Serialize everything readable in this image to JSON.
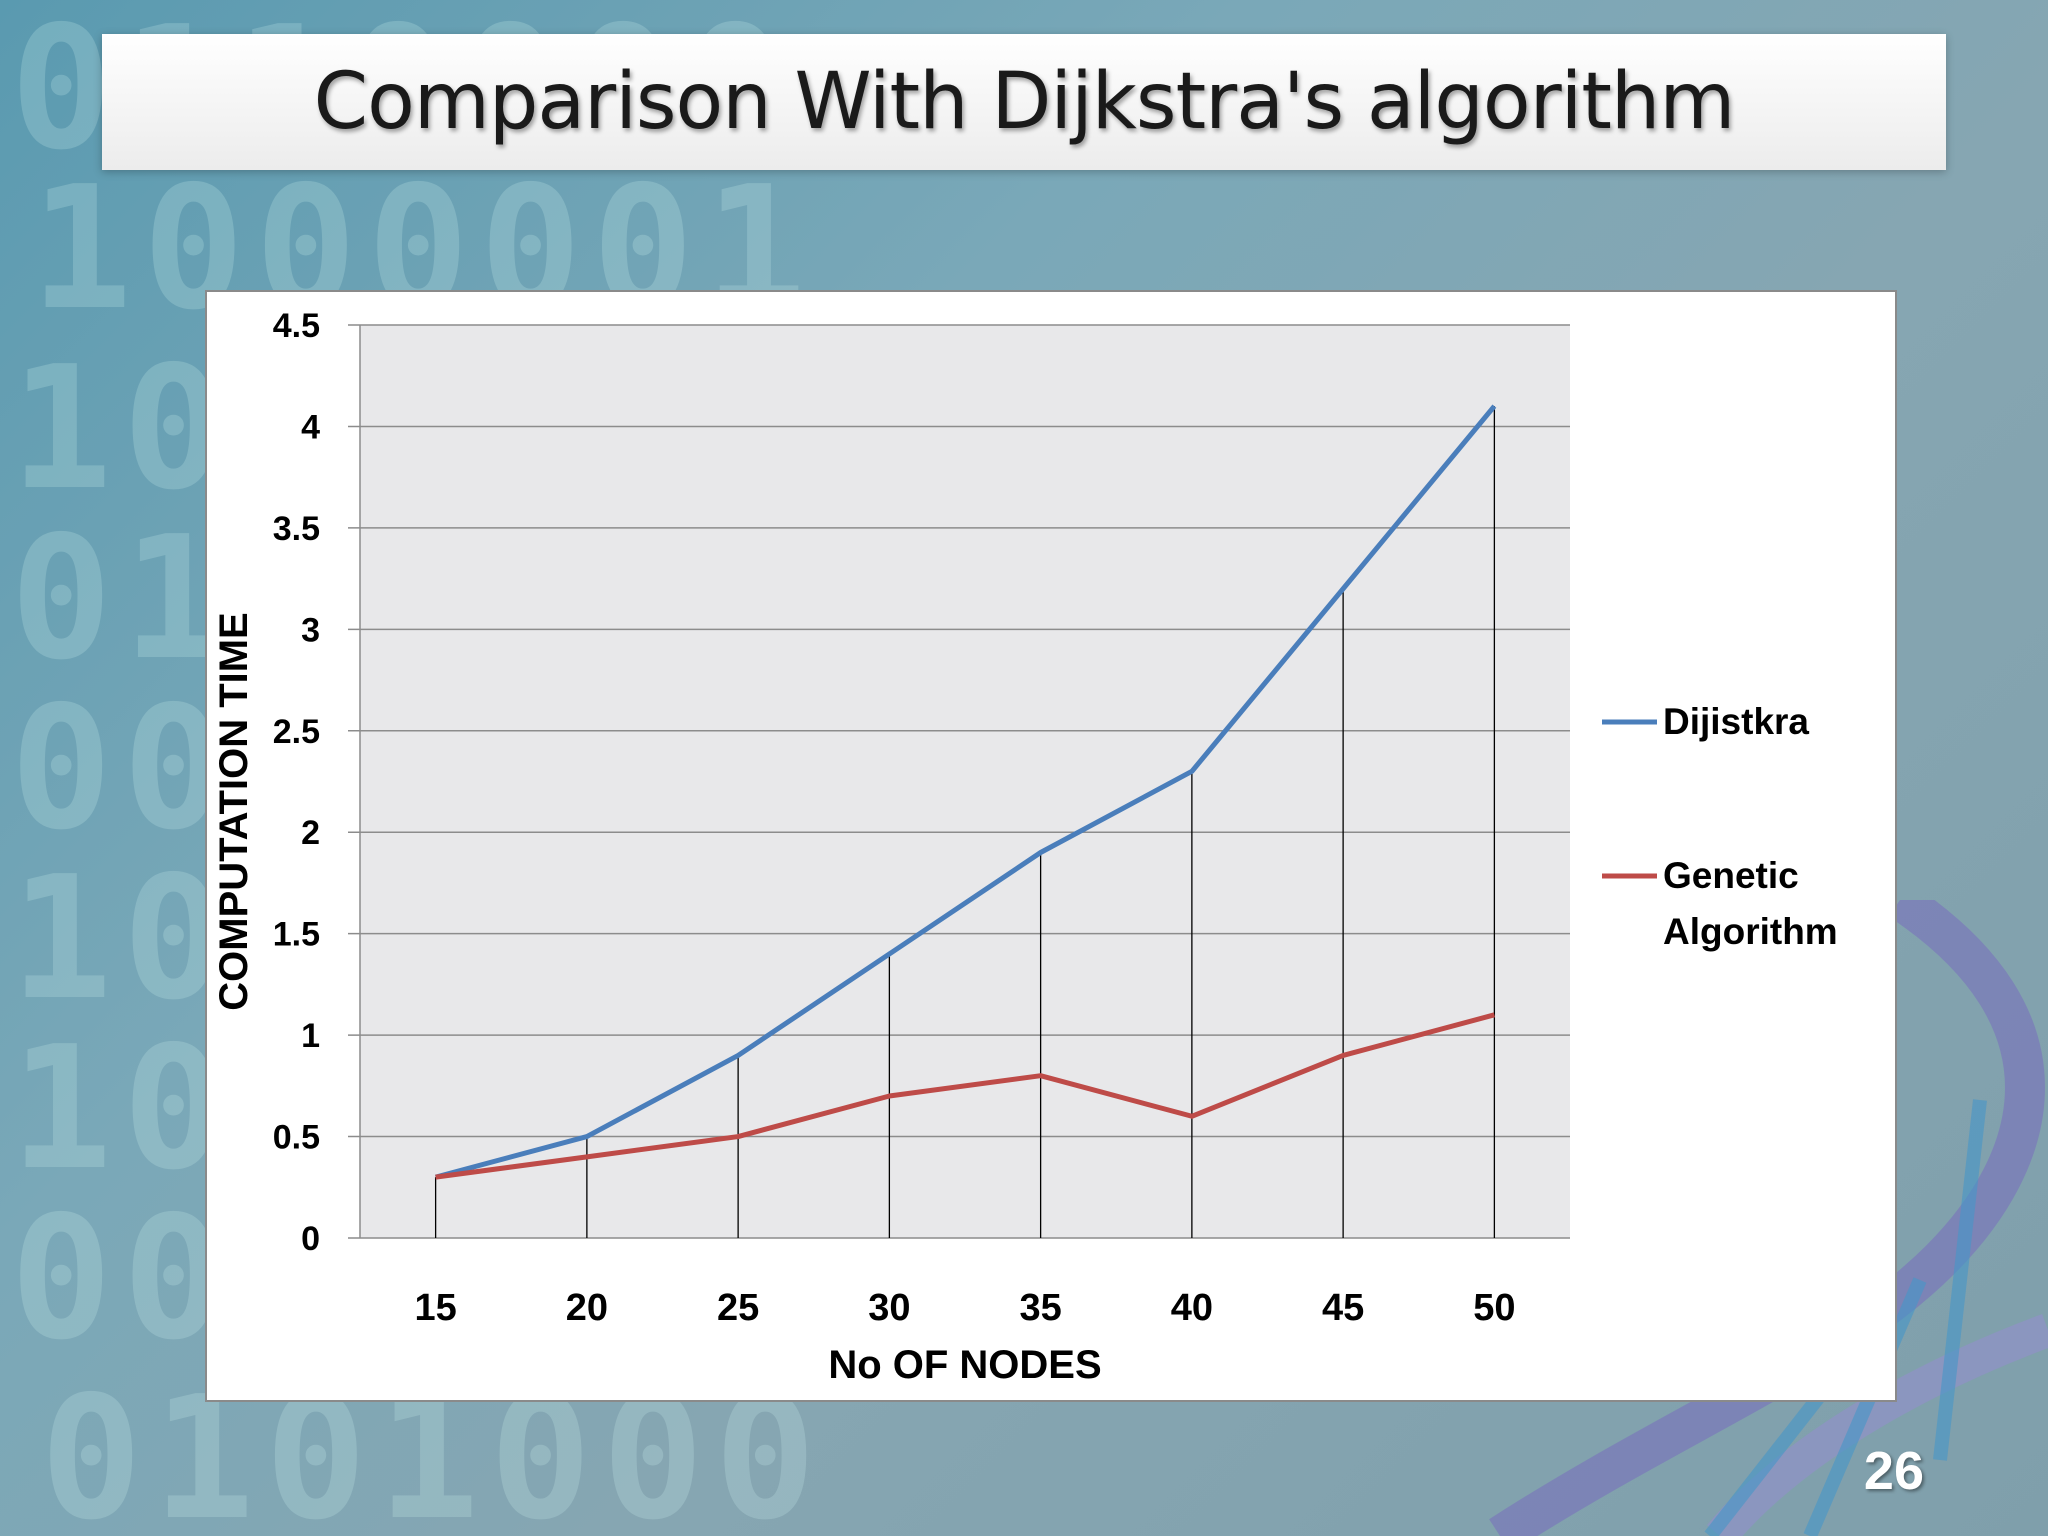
{
  "slide": {
    "title": "Comparison With Dijkstra's algorithm",
    "page_number": "26"
  },
  "colors": {
    "dijkstra": "#4a7ebb",
    "genetic": "#be4b48",
    "plot_bg": "#e8e8ea",
    "gridline": "#8c8c8c"
  },
  "chart_data": {
    "type": "line",
    "title": "",
    "xlabel": "No OF NODES",
    "ylabel": "COMPUTATION TIME",
    "x": [
      15,
      20,
      25,
      30,
      35,
      40,
      45,
      50
    ],
    "x_tick_labels": [
      "15",
      "20",
      "25",
      "30",
      "35",
      "40",
      "45",
      "50"
    ],
    "y_tick_labels": [
      "0",
      "0.5",
      "1",
      "1.5",
      "2",
      "2.5",
      "3",
      "3.5",
      "4",
      "4.5"
    ],
    "ylim": [
      0,
      4.5
    ],
    "y_step": 0.5,
    "grid": true,
    "drop_lines": true,
    "legend_position": "right",
    "series": [
      {
        "name": "Dijistkra",
        "values": [
          0.3,
          0.5,
          0.9,
          1.4,
          1.9,
          2.3,
          3.2,
          4.1
        ]
      },
      {
        "name": "Genetic Algorithm",
        "name_lines": [
          "Genetic",
          "Algorithm"
        ],
        "values": [
          0.3,
          0.4,
          0.5,
          0.7,
          0.8,
          0.6,
          0.9,
          1.1
        ]
      }
    ]
  }
}
